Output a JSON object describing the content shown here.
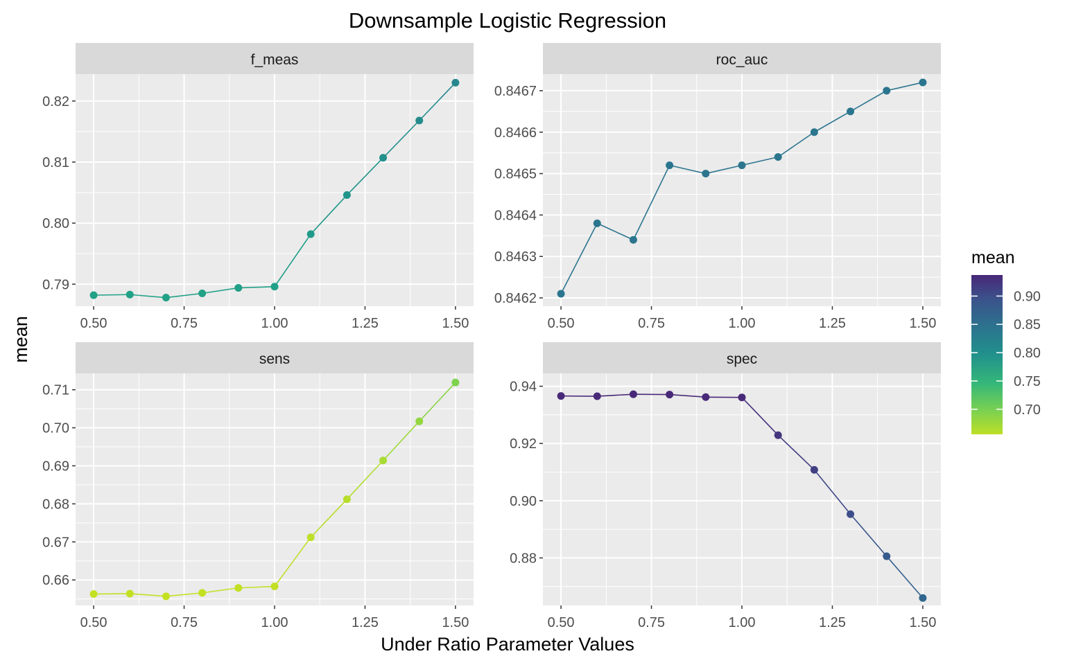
{
  "chart_data": {
    "type": "line",
    "title": "Downsample Logistic Regression",
    "xlabel": "Under Ratio Parameter Values",
    "ylabel": "mean",
    "x": [
      0.5,
      0.6,
      0.7,
      0.8,
      0.9,
      1.0,
      1.1,
      1.2,
      1.3,
      1.4,
      1.5
    ],
    "x_ticks": [
      "0.50",
      "0.75",
      "1.00",
      "1.25",
      "1.50"
    ],
    "xlim": [
      0.45,
      1.55
    ],
    "grid": true,
    "legend": {
      "title": "mean",
      "position": "right",
      "type": "colorbar",
      "palette": "viridis (reversed)",
      "range": [
        0.6557,
        0.9372
      ],
      "ticks": [
        "0.90",
        "0.85",
        "0.80",
        "0.75",
        "0.70"
      ],
      "tick_values": [
        0.9,
        0.85,
        0.8,
        0.75,
        0.7
      ]
    },
    "panels": [
      {
        "name": "f_meas",
        "ylim": [
          0.7864,
          0.8244
        ],
        "y_ticks": [
          "0.82",
          "0.81",
          "0.80",
          "0.79"
        ],
        "y_tick_values": [
          0.82,
          0.81,
          0.8,
          0.79
        ],
        "values": [
          0.7882,
          0.7883,
          0.7878,
          0.7885,
          0.7894,
          0.7896,
          0.7982,
          0.8046,
          0.8107,
          0.8168,
          0.823
        ]
      },
      {
        "name": "roc_auc",
        "ylim": [
          0.84618,
          0.84674
        ],
        "y_ticks": [
          "0.8467",
          "0.8466",
          "0.8465",
          "0.8464",
          "0.8463",
          "0.8462"
        ],
        "y_tick_values": [
          0.8467,
          0.8466,
          0.8465,
          0.8464,
          0.8463,
          0.8462
        ],
        "values": [
          0.84621,
          0.84638,
          0.84634,
          0.84652,
          0.8465,
          0.84652,
          0.84654,
          0.8466,
          0.84665,
          0.8467,
          0.84672
        ]
      },
      {
        "name": "sens",
        "ylim": [
          0.6533,
          0.7143
        ],
        "y_ticks": [
          "0.71",
          "0.70",
          "0.69",
          "0.68",
          "0.67",
          "0.66"
        ],
        "y_tick_values": [
          0.71,
          0.7,
          0.69,
          0.68,
          0.67,
          0.66
        ],
        "values": [
          0.6563,
          0.6564,
          0.6557,
          0.6566,
          0.6579,
          0.6583,
          0.6712,
          0.6812,
          0.6914,
          0.7017,
          0.7119
        ]
      },
      {
        "name": "spec",
        "ylim": [
          0.8634,
          0.9445
        ],
        "y_ticks": [
          "0.94",
          "0.92",
          "0.90",
          "0.88"
        ],
        "y_tick_values": [
          0.94,
          0.92,
          0.9,
          0.88
        ],
        "values": [
          0.9366,
          0.9365,
          0.9372,
          0.9371,
          0.9362,
          0.9361,
          0.9229,
          0.9108,
          0.8953,
          0.8806,
          0.866
        ]
      }
    ]
  }
}
